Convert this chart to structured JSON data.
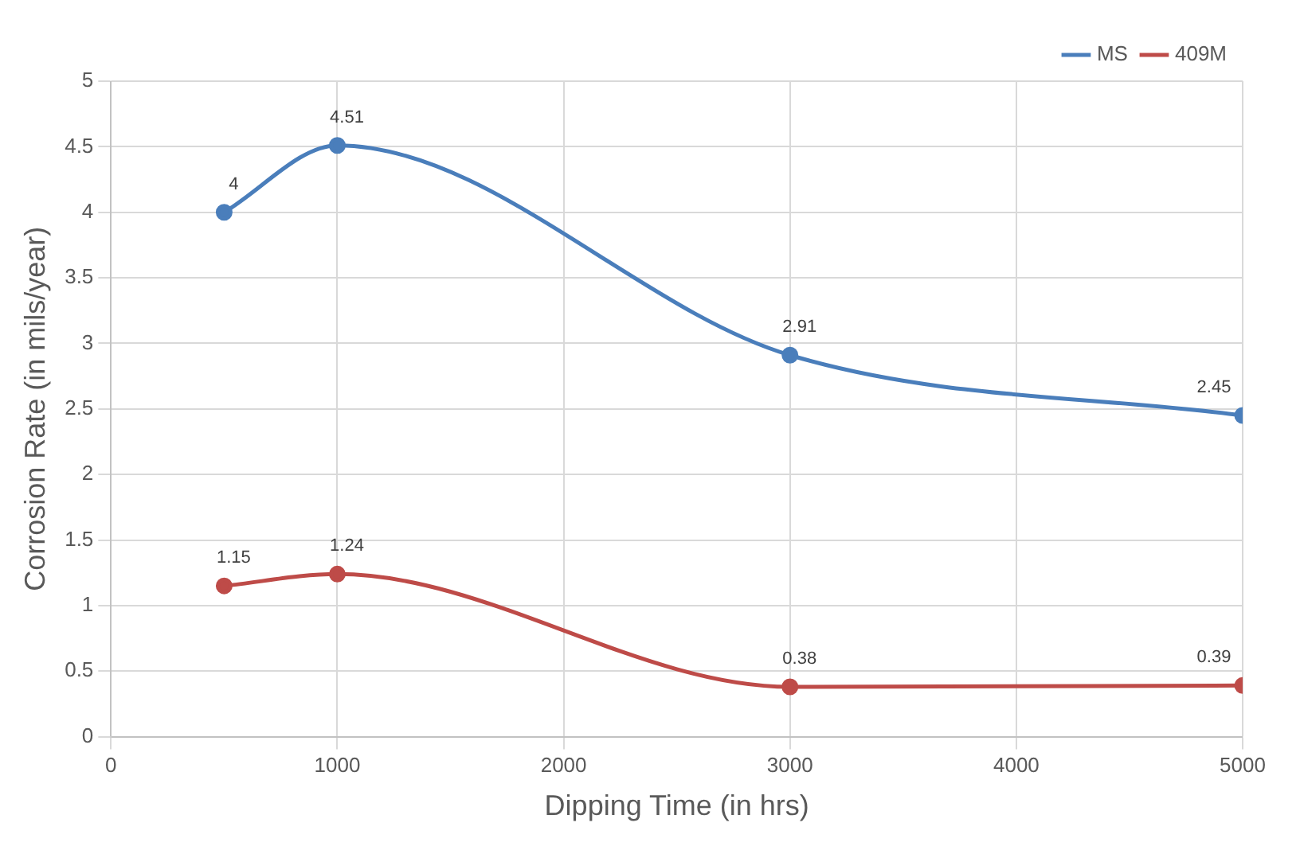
{
  "chart_data": {
    "type": "line",
    "xlabel": "Dipping Time (in hrs)",
    "ylabel": "Corrosion Rate (in mils/year)",
    "x": [
      500,
      1000,
      3000,
      5000
    ],
    "series": [
      {
        "name": "MS",
        "color": "#4a7ebb",
        "values": [
          4,
          4.51,
          2.91,
          2.45
        ]
      },
      {
        "name": "409M",
        "color": "#be4b48",
        "values": [
          1.15,
          1.24,
          0.38,
          0.39
        ]
      }
    ],
    "xlim": [
      0,
      5000
    ],
    "xticks": [
      0,
      1000,
      2000,
      3000,
      4000,
      5000
    ],
    "ylim": [
      0,
      5
    ],
    "yticks": [
      0,
      0.5,
      1,
      1.5,
      2,
      2.5,
      3,
      3.5,
      4,
      4.5,
      5
    ],
    "grid": true,
    "legend": "top right",
    "marker": "circle",
    "line_style": "solid",
    "data_labels": true
  }
}
